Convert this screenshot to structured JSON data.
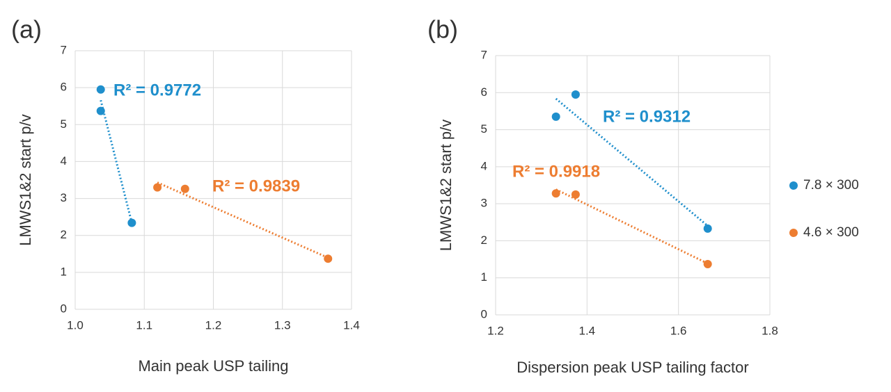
{
  "chart_data": [
    {
      "type": "scatter",
      "panel_label": "(a)",
      "x_label": "Main peak USP tailing",
      "y_label": "LMWS1&2 start p/v",
      "xlim": [
        1.0,
        1.4
      ],
      "xticks": [
        {
          "value": 1.0,
          "label": "1.0"
        },
        1.1,
        1.2,
        1.3,
        1.4
      ],
      "ylim": [
        0,
        7
      ],
      "yticks": [
        0,
        1,
        2,
        3,
        4,
        5,
        6,
        7
      ],
      "grid": true,
      "series": [
        {
          "color": "#1f8fcc",
          "x": [
            1.037,
            1.037,
            1.082
          ],
          "values": [
            5.95,
            5.37,
            2.34
          ]
        },
        {
          "color": "#ed7d31",
          "x": [
            1.119,
            1.159,
            1.366
          ],
          "values": [
            3.3,
            3.26,
            1.37
          ]
        }
      ],
      "annotations": [
        "R² = 0.9772",
        "R² = 0.9839"
      ]
    },
    {
      "type": "scatter",
      "panel_label": "(b)",
      "x_label": "Dispersion peak USP tailing factor",
      "y_label": "LMWS1&2 start p/v",
      "xlim": [
        1.2,
        1.8
      ],
      "xticks": [
        1.2,
        1.4,
        1.6,
        1.8
      ],
      "ylim": [
        0,
        7
      ],
      "yticks": [
        0,
        1,
        2,
        3,
        4,
        5,
        6,
        7
      ],
      "grid": true,
      "series": [
        {
          "name": "7.8 × 300",
          "color": "#1f8fcc",
          "x": [
            1.375,
            1.332,
            1.664
          ],
          "values": [
            5.95,
            5.35,
            2.33
          ]
        },
        {
          "name": "4.6 × 300",
          "color": "#ed7d31",
          "x": [
            1.332,
            1.375,
            1.664
          ],
          "values": [
            3.28,
            3.25,
            1.37
          ]
        }
      ],
      "annotations": [
        "R² = 0.9312",
        "R² = 0.9918"
      ]
    }
  ]
}
